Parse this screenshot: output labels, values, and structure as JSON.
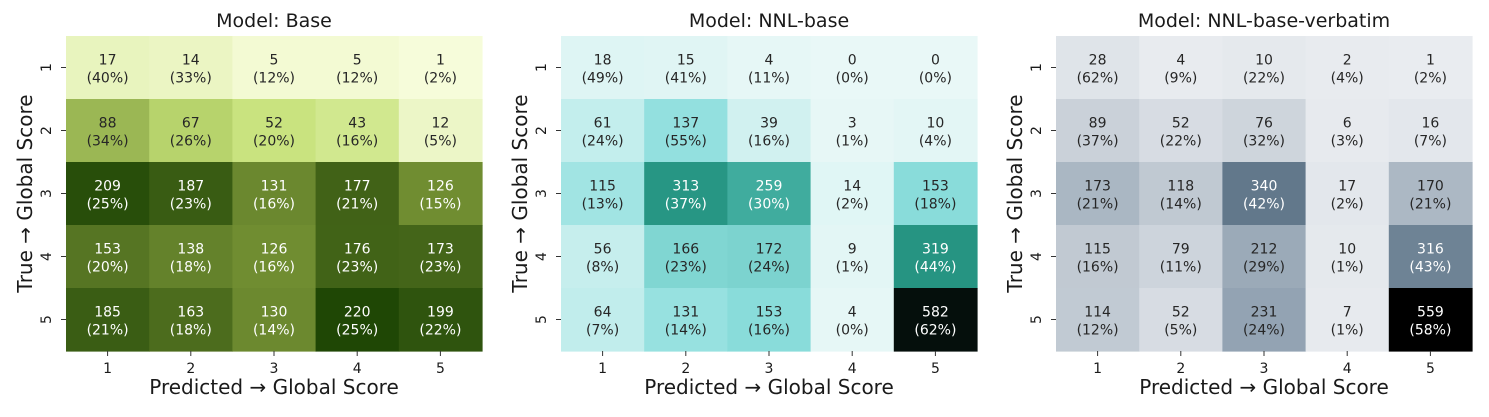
{
  "chart_data": [
    {
      "type": "heatmap",
      "title": "Model: Base",
      "xlabel": "Predicted → Global Score",
      "ylabel": "True → Global Score",
      "x_ticks": [
        "1",
        "2",
        "3",
        "4",
        "5"
      ],
      "y_ticks": [
        "1",
        "2",
        "3",
        "4",
        "5"
      ],
      "colormap": "green",
      "counts": [
        [
          17,
          14,
          5,
          5,
          1
        ],
        [
          88,
          67,
          52,
          43,
          12
        ],
        [
          209,
          187,
          131,
          177,
          126
        ],
        [
          153,
          138,
          126,
          176,
          173
        ],
        [
          185,
          163,
          130,
          220,
          199
        ]
      ],
      "percents": [
        [
          "(40%)",
          "(33%)",
          "(12%)",
          "(12%)",
          "(2%)"
        ],
        [
          "(34%)",
          "(26%)",
          "(20%)",
          "(16%)",
          "(5%)"
        ],
        [
          "(25%)",
          "(23%)",
          "(16%)",
          "(21%)",
          "(15%)"
        ],
        [
          "(20%)",
          "(18%)",
          "(16%)",
          "(23%)",
          "(23%)"
        ],
        [
          "(21%)",
          "(18%)",
          "(14%)",
          "(25%)",
          "(22%)"
        ]
      ]
    },
    {
      "type": "heatmap",
      "title": "Model: NNL-base",
      "xlabel": "Predicted → Global Score",
      "ylabel": "True → Global Score",
      "x_ticks": [
        "1",
        "2",
        "3",
        "4",
        "5"
      ],
      "y_ticks": [
        "1",
        "2",
        "3",
        "4",
        "5"
      ],
      "colormap": "teal",
      "counts": [
        [
          18,
          15,
          4,
          0,
          0
        ],
        [
          61,
          137,
          39,
          3,
          10
        ],
        [
          115,
          313,
          259,
          14,
          153
        ],
        [
          56,
          166,
          172,
          9,
          319
        ],
        [
          64,
          131,
          153,
          4,
          582
        ]
      ],
      "percents": [
        [
          "(49%)",
          "(41%)",
          "(11%)",
          "(0%)",
          "(0%)"
        ],
        [
          "(24%)",
          "(55%)",
          "(16%)",
          "(1%)",
          "(4%)"
        ],
        [
          "(13%)",
          "(37%)",
          "(30%)",
          "(2%)",
          "(18%)"
        ],
        [
          "(8%)",
          "(23%)",
          "(24%)",
          "(1%)",
          "(44%)"
        ],
        [
          "(7%)",
          "(14%)",
          "(16%)",
          "(0%)",
          "(62%)"
        ]
      ]
    },
    {
      "type": "heatmap",
      "title": "Model: NNL-base-verbatim",
      "xlabel": "Predicted → Global Score",
      "ylabel": "True → Global Score",
      "x_ticks": [
        "1",
        "2",
        "3",
        "4",
        "5"
      ],
      "y_ticks": [
        "1",
        "2",
        "3",
        "4",
        "5"
      ],
      "colormap": "slate",
      "counts": [
        [
          28,
          4,
          10,
          2,
          1
        ],
        [
          89,
          52,
          76,
          6,
          16
        ],
        [
          173,
          118,
          340,
          17,
          170
        ],
        [
          115,
          79,
          212,
          10,
          316
        ],
        [
          114,
          52,
          231,
          7,
          559
        ]
      ],
      "percents": [
        [
          "(62%)",
          "(9%)",
          "(22%)",
          "(4%)",
          "(2%)"
        ],
        [
          "(37%)",
          "(22%)",
          "(32%)",
          "(3%)",
          "(7%)"
        ],
        [
          "(21%)",
          "(14%)",
          "(42%)",
          "(2%)",
          "(21%)"
        ],
        [
          "(16%)",
          "(11%)",
          "(29%)",
          "(1%)",
          "(43%)"
        ],
        [
          "(12%)",
          "(5%)",
          "(24%)",
          "(1%)",
          "(58%)"
        ]
      ]
    }
  ]
}
